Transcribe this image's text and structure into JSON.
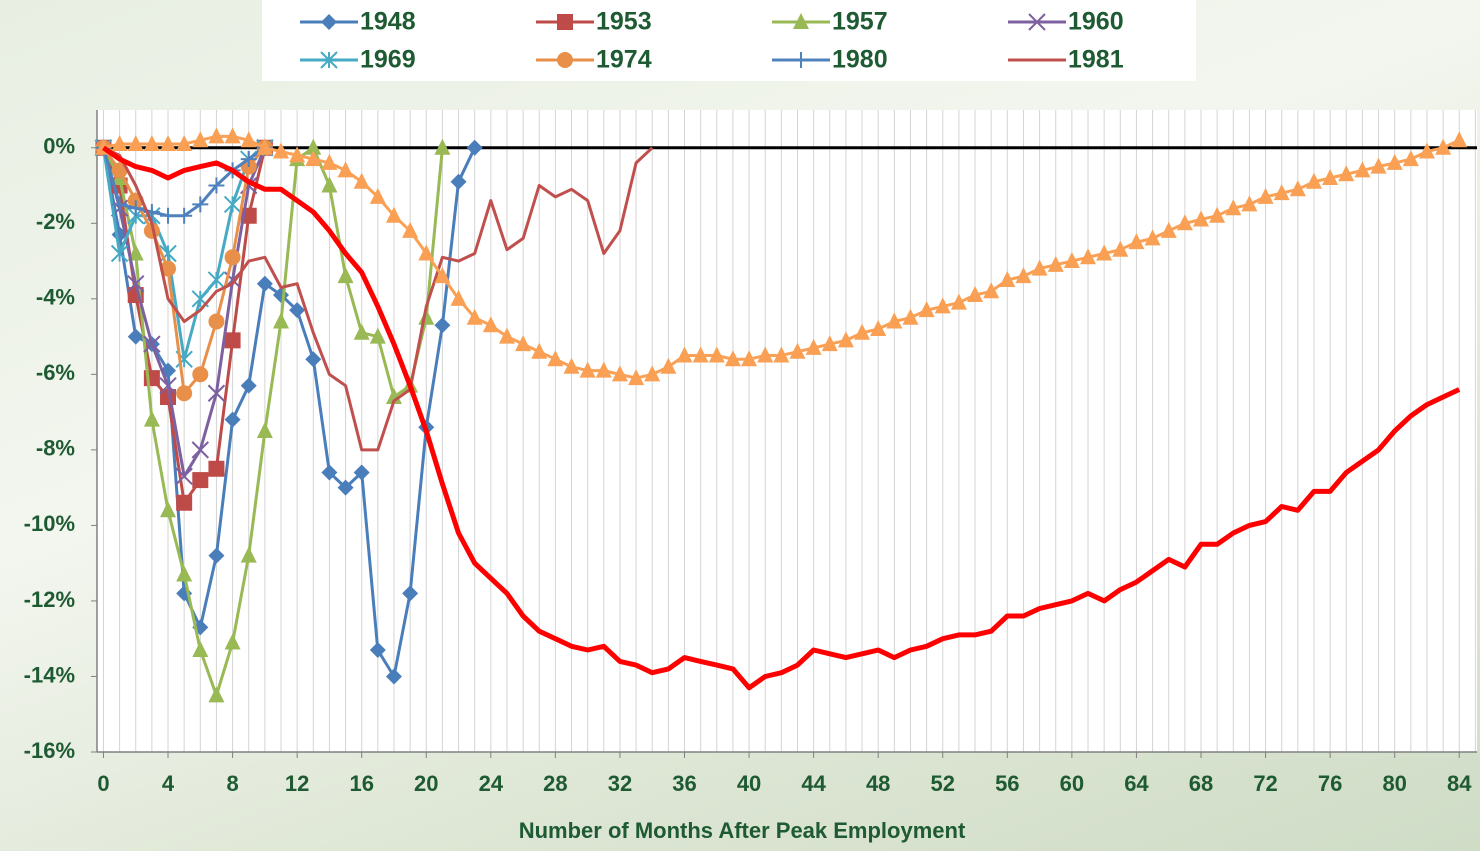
{
  "chart_data": {
    "type": "line",
    "x_label": "Number of Months After Peak Employment",
    "x": [
      0,
      1,
      2,
      3,
      4,
      5,
      6,
      7,
      8,
      9,
      10,
      11,
      12,
      13,
      14,
      15,
      16,
      17,
      18,
      19,
      20,
      21,
      22,
      23,
      24,
      25,
      26,
      27,
      28,
      29,
      30,
      31,
      32,
      33,
      34,
      35,
      36,
      37,
      38,
      39,
      40,
      41,
      42,
      43,
      44,
      45,
      46,
      47,
      48,
      49,
      50,
      51,
      52,
      53,
      54,
      55,
      56,
      57,
      58,
      59,
      60,
      61,
      62,
      63,
      64,
      65,
      66,
      67,
      68,
      69,
      70,
      71,
      72,
      73,
      74,
      75,
      76,
      77,
      78,
      79,
      80,
      81,
      82,
      83,
      84
    ],
    "xlim": [
      -0.4,
      85.1
    ],
    "xticks": [
      0,
      4,
      8,
      12,
      16,
      20,
      24,
      28,
      32,
      36,
      40,
      44,
      48,
      52,
      56,
      60,
      64,
      68,
      72,
      76,
      80,
      84
    ],
    "x_minor_step": 1,
    "ylim": [
      -16,
      1
    ],
    "yticks": [
      {
        "value": -16,
        "label": "-16%"
      },
      {
        "value": -14,
        "label": "-14%"
      },
      {
        "value": -12,
        "label": "-12%"
      },
      {
        "value": -10,
        "label": "-10%"
      },
      {
        "value": -8,
        "label": "-8%"
      },
      {
        "value": -6,
        "label": "-6%"
      },
      {
        "value": -4,
        "label": "-4%"
      },
      {
        "value": -2,
        "label": "-2%"
      },
      {
        "value": 0,
        "label": "0%"
      }
    ],
    "zero_line": true,
    "series": [
      {
        "name": "1948",
        "color": "#4a7ebb",
        "marker": "diamond",
        "values": [
          0,
          -2.3,
          -5.0,
          -5.2,
          -5.9,
          -11.8,
          -12.7,
          -10.8,
          -7.2,
          -6.3,
          -3.6,
          -3.9,
          -4.3,
          -5.6,
          -8.6,
          -9.0,
          -8.6,
          -13.3,
          -14.0,
          -11.8,
          -7.4,
          -4.7,
          -0.9,
          0,
          null,
          null,
          null,
          null,
          null,
          null,
          null,
          null,
          null,
          null,
          null,
          null,
          null,
          null,
          null,
          null,
          null,
          null,
          null,
          null,
          null,
          null,
          null,
          null,
          null,
          null,
          null,
          null,
          null,
          null,
          null,
          null,
          null,
          null,
          null,
          null,
          null,
          null,
          null,
          null,
          null,
          null,
          null,
          null,
          null,
          null,
          null,
          null,
          null,
          null,
          null,
          null,
          null,
          null,
          null,
          null,
          null,
          null,
          null,
          null,
          null
        ]
      },
      {
        "name": "1953",
        "color": "#be4b48",
        "marker": "square",
        "values": [
          0,
          -1.0,
          -3.9,
          -6.1,
          -6.6,
          -9.4,
          -8.8,
          -8.5,
          -5.1,
          -1.8,
          0,
          null,
          null,
          null,
          null,
          null,
          null,
          null,
          null,
          null,
          null,
          null,
          null,
          null,
          null,
          null,
          null,
          null,
          null,
          null,
          null,
          null,
          null,
          null,
          null,
          null,
          null,
          null,
          null,
          null,
          null,
          null,
          null,
          null,
          null,
          null,
          null,
          null,
          null,
          null,
          null,
          null,
          null,
          null,
          null,
          null,
          null,
          null,
          null,
          null,
          null,
          null,
          null,
          null,
          null,
          null,
          null,
          null,
          null,
          null,
          null,
          null,
          null,
          null,
          null,
          null,
          null,
          null,
          null,
          null,
          null,
          null,
          null,
          null,
          null
        ]
      },
      {
        "name": "1957",
        "color": "#98b954",
        "marker": "triangle",
        "values": [
          0,
          -0.8,
          -2.8,
          -7.2,
          -9.6,
          -11.3,
          -13.3,
          -14.5,
          -13.1,
          -10.8,
          -7.5,
          -4.6,
          -0.3,
          0,
          -1.0,
          -3.4,
          -4.9,
          -5.0,
          -6.6,
          -6.3,
          -4.5,
          0,
          null,
          null,
          null,
          null,
          null,
          null,
          null,
          null,
          null,
          null,
          null,
          null,
          null,
          null,
          null,
          null,
          null,
          null,
          null,
          null,
          null,
          null,
          null,
          null,
          null,
          null,
          null,
          null,
          null,
          null,
          null,
          null,
          null,
          null,
          null,
          null,
          null,
          null,
          null,
          null,
          null,
          null,
          null,
          null,
          null,
          null,
          null,
          null,
          null,
          null,
          null,
          null,
          null,
          null,
          null,
          null,
          null,
          null,
          null,
          null,
          null,
          null,
          null
        ]
      },
      {
        "name": "1960",
        "color": "#7d60a0",
        "marker": "x",
        "values": [
          0,
          -1.6,
          -3.6,
          -5.2,
          -6.3,
          -8.7,
          -8.0,
          -6.5,
          -3.5,
          -1.0,
          0,
          null,
          null,
          null,
          null,
          null,
          null,
          null,
          null,
          null,
          null,
          null,
          null,
          null,
          null,
          null,
          null,
          null,
          null,
          null,
          null,
          null,
          null,
          null,
          null,
          null,
          null,
          null,
          null,
          null,
          null,
          null,
          null,
          null,
          null,
          null,
          null,
          null,
          null,
          null,
          null,
          null,
          null,
          null,
          null,
          null,
          null,
          null,
          null,
          null,
          null,
          null,
          null,
          null,
          null,
          null,
          null,
          null,
          null,
          null,
          null,
          null,
          null,
          null,
          null,
          null,
          null,
          null,
          null,
          null,
          null,
          null,
          null,
          null,
          null
        ]
      },
      {
        "name": "1969",
        "color": "#46aac5",
        "marker": "star",
        "values": [
          0,
          -2.8,
          -1.8,
          -1.8,
          -2.8,
          -5.6,
          -4.0,
          -3.5,
          -1.5,
          -0.3,
          0,
          null,
          null,
          null,
          null,
          null,
          null,
          null,
          null,
          null,
          null,
          null,
          null,
          null,
          null,
          null,
          null,
          null,
          null,
          null,
          null,
          null,
          null,
          null,
          null,
          null,
          null,
          null,
          null,
          null,
          null,
          null,
          null,
          null,
          null,
          null,
          null,
          null,
          null,
          null,
          null,
          null,
          null,
          null,
          null,
          null,
          null,
          null,
          null,
          null,
          null,
          null,
          null,
          null,
          null,
          null,
          null,
          null,
          null,
          null,
          null,
          null,
          null,
          null,
          null,
          null,
          null,
          null,
          null,
          null,
          null,
          null,
          null,
          null,
          null
        ]
      },
      {
        "name": "1974",
        "color": "#e8904a",
        "marker": "circle",
        "values": [
          0,
          -0.6,
          -1.4,
          -2.2,
          -3.2,
          -6.5,
          -6.0,
          -4.6,
          -2.9,
          -0.5,
          0,
          null,
          null,
          null,
          null,
          null,
          null,
          null,
          null,
          null,
          null,
          null,
          null,
          null,
          null,
          null,
          null,
          null,
          null,
          null,
          null,
          null,
          null,
          null,
          null,
          null,
          null,
          null,
          null,
          null,
          null,
          null,
          null,
          null,
          null,
          null,
          null,
          null,
          null,
          null,
          null,
          null,
          null,
          null,
          null,
          null,
          null,
          null,
          null,
          null,
          null,
          null,
          null,
          null,
          null,
          null,
          null,
          null,
          null,
          null,
          null,
          null,
          null,
          null,
          null,
          null,
          null,
          null,
          null,
          null,
          null,
          null,
          null,
          null,
          null
        ]
      },
      {
        "name": "1980",
        "color": "#4f81bd",
        "marker": "plus",
        "values": [
          0,
          -1.5,
          -1.6,
          -1.7,
          -1.8,
          -1.8,
          -1.5,
          -1.0,
          -0.6,
          -0.3,
          0,
          null,
          null,
          null,
          null,
          null,
          null,
          null,
          null,
          null,
          null,
          null,
          null,
          null,
          null,
          null,
          null,
          null,
          null,
          null,
          null,
          null,
          null,
          null,
          null,
          null,
          null,
          null,
          null,
          null,
          null,
          null,
          null,
          null,
          null,
          null,
          null,
          null,
          null,
          null,
          null,
          null,
          null,
          null,
          null,
          null,
          null,
          null,
          null,
          null,
          null,
          null,
          null,
          null,
          null,
          null,
          null,
          null,
          null,
          null,
          null,
          null,
          null,
          null,
          null,
          null,
          null,
          null,
          null,
          null,
          null,
          null,
          null,
          null,
          null
        ]
      },
      {
        "name": "1981",
        "color": "#c0504d",
        "marker": "none",
        "values": [
          0,
          -0.2,
          -1.0,
          -2.0,
          -4.0,
          -4.6,
          -4.3,
          -3.8,
          -3.6,
          -3.0,
          -2.9,
          -3.7,
          -3.6,
          -4.9,
          -6.0,
          -6.3,
          -8.0,
          -8.0,
          -6.7,
          -6.4,
          -4.2,
          -2.9,
          -3.0,
          -2.8,
          -1.4,
          -2.7,
          -2.4,
          -1.0,
          -1.3,
          -1.1,
          -1.4,
          -2.8,
          -2.2,
          -0.4,
          0,
          null,
          null,
          null,
          null,
          null,
          null,
          null,
          null,
          null,
          null,
          null,
          null,
          null,
          null,
          null,
          null,
          null,
          null,
          null,
          null,
          null,
          null,
          null,
          null,
          null,
          null,
          null,
          null,
          null,
          null,
          null,
          null,
          null,
          null,
          null,
          null,
          null,
          null,
          null,
          null,
          null,
          null,
          null,
          null,
          null,
          null,
          null,
          null,
          null,
          null
        ]
      },
      {
        "color": "#f9a055",
        "marker": "triangle",
        "values": [
          0,
          0.1,
          0.1,
          0.1,
          0.1,
          0.1,
          0.2,
          0.3,
          0.3,
          0.2,
          0,
          -0.1,
          -0.2,
          -0.3,
          -0.4,
          -0.6,
          -0.9,
          -1.3,
          -1.8,
          -2.2,
          -2.8,
          -3.4,
          -4.0,
          -4.5,
          -4.7,
          -5.0,
          -5.2,
          -5.4,
          -5.6,
          -5.8,
          -5.9,
          -5.9,
          -6.0,
          -6.1,
          -6.0,
          -5.8,
          -5.5,
          -5.5,
          -5.5,
          -5.6,
          -5.6,
          -5.5,
          -5.5,
          -5.4,
          -5.3,
          -5.2,
          -5.1,
          -4.9,
          -4.8,
          -4.6,
          -4.5,
          -4.3,
          -4.2,
          -4.1,
          -3.9,
          -3.8,
          -3.5,
          -3.4,
          -3.2,
          -3.1,
          -3.0,
          -2.9,
          -2.8,
          -2.7,
          -2.5,
          -2.4,
          -2.2,
          -2.0,
          -1.9,
          -1.8,
          -1.6,
          -1.5,
          -1.3,
          -1.2,
          -1.1,
          -0.9,
          -0.8,
          -0.7,
          -0.6,
          -0.5,
          -0.4,
          -0.3,
          -0.1,
          0.0,
          0.2
        ]
      },
      {
        "color": "#ff0000",
        "marker": "none",
        "width": 5,
        "values": [
          0,
          -0.3,
          -0.5,
          -0.6,
          -0.8,
          -0.6,
          -0.5,
          -0.4,
          -0.6,
          -0.9,
          -1.1,
          -1.1,
          -1.4,
          -1.7,
          -2.2,
          -2.8,
          -3.3,
          -4.2,
          -5.2,
          -6.3,
          -7.5,
          -8.9,
          -10.2,
          -11.0,
          -11.4,
          -11.8,
          -12.4,
          -12.8,
          -13.0,
          -13.2,
          -13.3,
          -13.2,
          -13.6,
          -13.7,
          -13.9,
          -13.8,
          -13.5,
          -13.6,
          -13.7,
          -13.8,
          -14.3,
          -14.0,
          -13.9,
          -13.7,
          -13.3,
          -13.4,
          -13.5,
          -13.4,
          -13.3,
          -13.5,
          -13.3,
          -13.2,
          -13.0,
          -12.9,
          -12.9,
          -12.8,
          -12.4,
          -12.4,
          -12.2,
          -12.1,
          -12.0,
          -11.8,
          -12.0,
          -11.7,
          -11.5,
          -11.2,
          -10.9,
          -11.1,
          -10.5,
          -10.5,
          -10.2,
          -10.0,
          -9.9,
          -9.5,
          -9.6,
          -9.1,
          -9.1,
          -8.6,
          -8.3,
          -8.0,
          -7.5,
          -7.1,
          -6.8,
          -6.6,
          -6.4
        ]
      }
    ]
  }
}
